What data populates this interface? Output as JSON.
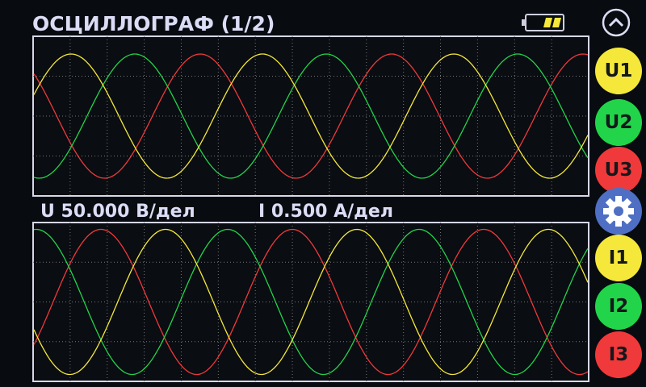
{
  "header": {
    "title": "ОСЦИЛЛОГРАФ (1/2)"
  },
  "scales": {
    "voltage": "U 50.000 В/дел",
    "current": "I 0.500 А/дел"
  },
  "channels": {
    "voltage": [
      "U1",
      "U2",
      "U3"
    ],
    "current": [
      "I1",
      "I2",
      "I3"
    ]
  }
}
